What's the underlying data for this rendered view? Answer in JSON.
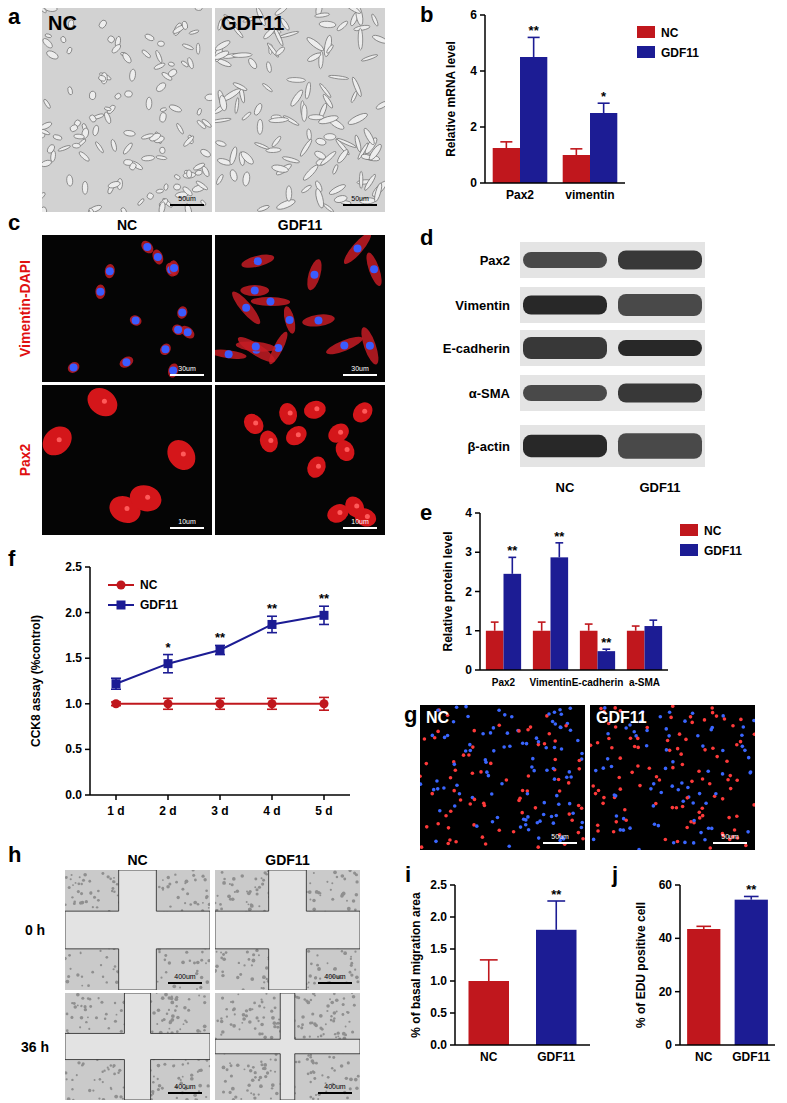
{
  "chart_data": [
    {
      "panel": "b",
      "type": "bar",
      "ylabel": "Relative mRNA level",
      "categories": [
        "Pax2",
        "vimentin"
      ],
      "series": [
        {
          "name": "NC",
          "color": "#c0171d",
          "values": [
            1.25,
            1.0
          ],
          "errors": [
            0.22,
            0.22
          ]
        },
        {
          "name": "GDF11",
          "color": "#1c1c94",
          "values": [
            4.5,
            2.5
          ],
          "errors": [
            0.7,
            0.35
          ],
          "significance": [
            "**",
            "*"
          ]
        }
      ],
      "ylim": [
        0,
        6
      ],
      "yticks": [
        0,
        2,
        4,
        6
      ],
      "legend": "top-right"
    },
    {
      "panel": "e",
      "type": "bar",
      "ylabel": "Relative protein level",
      "categories": [
        "Pax2",
        "Vimentin",
        "E-cadherin",
        "a-SMA"
      ],
      "series": [
        {
          "name": "NC",
          "color": "#c0171d",
          "values": [
            1.0,
            1.0,
            1.0,
            1.0
          ],
          "errors": [
            0.22,
            0.22,
            0.17,
            0.12
          ]
        },
        {
          "name": "GDF11",
          "color": "#1c1c94",
          "values": [
            2.45,
            2.87,
            0.48,
            1.12
          ],
          "errors": [
            0.42,
            0.37,
            0.05,
            0.15
          ],
          "significance": [
            "**",
            "**",
            "**",
            null
          ]
        }
      ],
      "ylim": [
        0,
        4
      ],
      "yticks": [
        0,
        1,
        2,
        3,
        4
      ],
      "legend": "top-right"
    },
    {
      "panel": "f",
      "type": "line",
      "ylabel": "CCK8 assay (%control)",
      "categories": [
        "1 d",
        "2 d",
        "3 d",
        "4 d",
        "5 d"
      ],
      "series": [
        {
          "name": "NC",
          "color": "#c0171d",
          "marker": "circle",
          "values": [
            1.0,
            1.0,
            1.0,
            1.0,
            1.0
          ],
          "errors": [
            0.02,
            0.06,
            0.06,
            0.06,
            0.07
          ]
        },
        {
          "name": "GDF11",
          "color": "#1c1c94",
          "marker": "square",
          "values": [
            1.22,
            1.44,
            1.59,
            1.87,
            1.97
          ],
          "errors": [
            0.06,
            0.1,
            0.05,
            0.09,
            0.1
          ],
          "significance": [
            null,
            "*",
            "**",
            "**",
            "**"
          ]
        }
      ],
      "ylim": [
        0,
        2.5
      ],
      "yticks": [
        {
          "value": 0,
          "label": "0.0"
        },
        0.5,
        {
          "value": 1,
          "label": "1.0"
        },
        1.5,
        {
          "value": 2,
          "label": "2.0"
        },
        2.5
      ],
      "legend": "top-left"
    },
    {
      "panel": "i",
      "type": "bar",
      "ylabel": "% of basal migration area",
      "categories": [
        "NC",
        "GDF11"
      ],
      "colors": [
        "#c0171d",
        "#1c1c94"
      ],
      "values": [
        1.0,
        1.8
      ],
      "errors": [
        0.33,
        0.45
      ],
      "significance": [
        null,
        "**"
      ],
      "ylim": [
        0,
        2.5
      ],
      "yticks": [
        {
          "value": 0,
          "label": "0.0"
        },
        0.5,
        {
          "value": 1,
          "label": "1.0"
        },
        1.5,
        {
          "value": 2,
          "label": "2.0"
        },
        2.5
      ]
    },
    {
      "panel": "j",
      "type": "bar",
      "ylabel": "% of EDU positive cell",
      "categories": [
        "NC",
        "GDF11"
      ],
      "colors": [
        "#c0171d",
        "#1c1c94"
      ],
      "values": [
        43.5,
        54.5
      ],
      "errors": [
        1.0,
        1.2
      ],
      "significance": [
        null,
        "**"
      ],
      "ylim": [
        0,
        60
      ],
      "yticks": [
        0,
        20,
        40,
        60
      ]
    }
  ],
  "figures": [
    {
      "panel": "a",
      "type": "phase",
      "columns": [
        "NC",
        "GDF11"
      ],
      "scale_bar": "50um"
    },
    {
      "panel": "c",
      "type": "immunofluorescence",
      "columns": [
        "NC",
        "GDF11"
      ],
      "rows": [
        "Vimentin-DAPI",
        "Pax2"
      ],
      "scale_bars": [
        "30um",
        "10um"
      ]
    },
    {
      "panel": "d",
      "type": "blot",
      "rows": [
        "Pax2",
        "Vimentin",
        "E-cadherin",
        "α-SMA",
        "β-actin"
      ],
      "columns": [
        "NC",
        "GDF11"
      ]
    },
    {
      "panel": "g",
      "type": "edu",
      "columns": [
        "NC",
        "GDF11"
      ],
      "scale_bar": "50um"
    },
    {
      "panel": "h",
      "type": "wound",
      "columns": [
        "NC",
        "GDF11"
      ],
      "rows": [
        "0 h",
        "36 h"
      ],
      "scale_bar": "400um"
    }
  ]
}
